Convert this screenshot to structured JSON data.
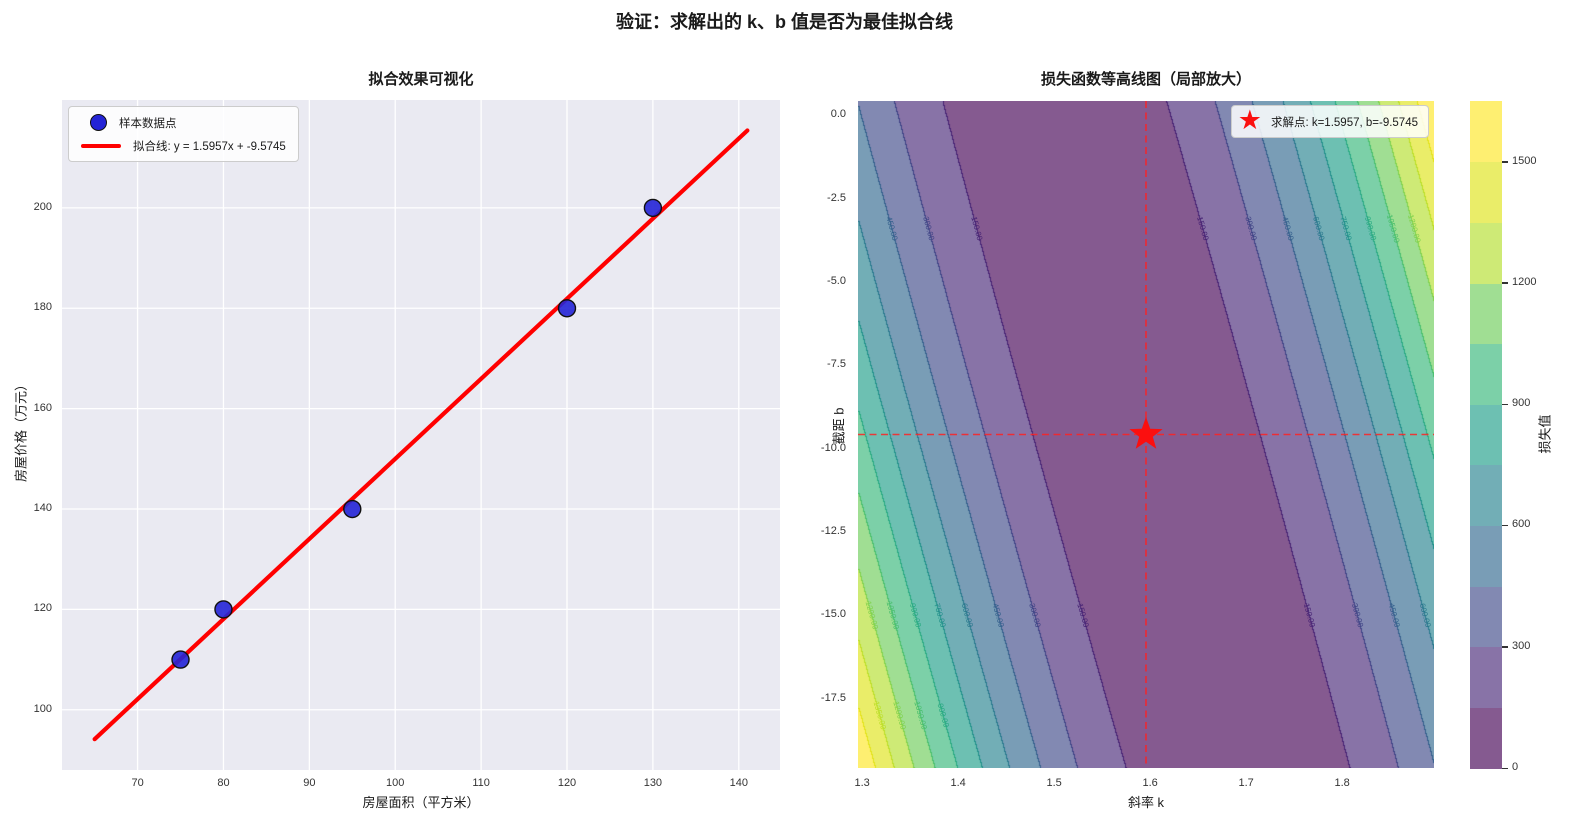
{
  "suptitle": "验证：求解出的 k、b 值是否为最佳拟合线",
  "chart_data": [
    {
      "type": "scatter+line",
      "title": "拟合效果可视化",
      "xlabel": "房屋面积（平方米）",
      "ylabel": "房屋价格（万元）",
      "scatter_label": "样本数据点",
      "scatter_color": "#2424d6",
      "points": [
        [
          75,
          110
        ],
        [
          80,
          120
        ],
        [
          95,
          140
        ],
        [
          120,
          180
        ],
        [
          130,
          200
        ]
      ],
      "fit_line": {
        "label": "拟合线: y = 1.5957x + -9.5745",
        "k": 1.5957,
        "b": -9.5745,
        "x_start": 65,
        "x_end": 141,
        "color": "#ff0000"
      },
      "xlim": [
        61.2,
        144.8
      ],
      "ylim": [
        88,
        221.5
      ],
      "xticks": [
        70,
        80,
        90,
        100,
        110,
        120,
        130,
        140
      ],
      "yticks": [
        100,
        120,
        140,
        160,
        180,
        200
      ],
      "bg": "#eaeaf2",
      "grid_color": "#ffffff"
    },
    {
      "type": "contour",
      "title": "损失函数等高线图（局部放大）",
      "xlabel": "斜率 k",
      "ylabel": "截距 b",
      "k_range": [
        1.2957,
        1.8957
      ],
      "b_range": [
        -19.5745,
        0.4255
      ],
      "xticks": [
        "1.3",
        "1.4",
        "1.5",
        "1.6",
        "1.7",
        "1.8"
      ],
      "yticks": [
        "0.0",
        "-2.5",
        "-5.0",
        "-7.5",
        "-10.0",
        "-12.5",
        "-15.0",
        "-17.5"
      ],
      "solution": {
        "k": 1.5957,
        "b": -9.5745,
        "label": "求解点: k=1.5957, b=-9.5745"
      },
      "loss_definition": "mean squared error of y=kx+b over the sample points",
      "level_step": 150,
      "level_max": 1650,
      "band_colors": [
        "#855a90",
        "#8873a7",
        "#8289b2",
        "#799db6",
        "#72aeb6",
        "#6dc0b2",
        "#7cd0a8",
        "#a0de93",
        "#ceea76",
        "#eaed69",
        "#feef71"
      ],
      "line_colors": [
        "#482475",
        "#404486",
        "#35608d",
        "#2a798e",
        "#22918b",
        "#29aa82",
        "#49bf6d",
        "#80d24d",
        "#bcdf28",
        "#e2e319"
      ],
      "contour_label_texts": [
        "150.00",
        "300.00",
        "450.00",
        "600.00",
        "750.00",
        "900.00",
        "1050.00",
        "1200.00",
        "1350.00",
        "1500.00"
      ],
      "crosshair_color": "#ff2222",
      "star_color": "#fb0f0f",
      "colorbar": {
        "label": "损失值",
        "ticks": [
          "0",
          "300",
          "600",
          "900",
          "1200",
          "1500"
        ],
        "tick_values": [
          0,
          300,
          600,
          900,
          1200,
          1500
        ]
      }
    }
  ]
}
